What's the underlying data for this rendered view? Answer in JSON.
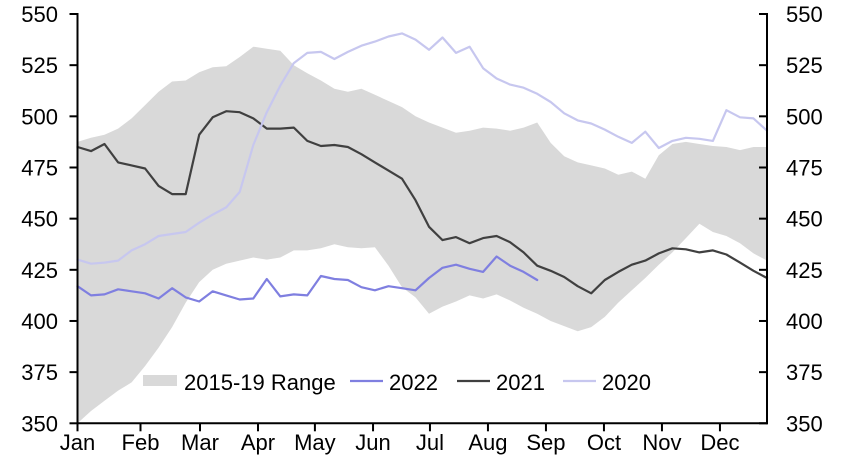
{
  "chart_data": {
    "type": "line",
    "x_axis": {
      "categories": [
        "Jan",
        "Feb",
        "Mar",
        "Apr",
        "May",
        "Jun",
        "Jul",
        "Aug",
        "Sep",
        "Oct",
        "Nov",
        "Dec"
      ],
      "tick_weeks": [
        0,
        4.66,
        9.06,
        13.35,
        17.56,
        21.86,
        26.07,
        30.36,
        34.65,
        38.94,
        43.23,
        47.52
      ],
      "weeks_span": 51
    },
    "y_axis": {
      "min": 350,
      "max": 550,
      "step": 25,
      "ticks": [
        550,
        525,
        500,
        475,
        450,
        425,
        400,
        375,
        350
      ],
      "dual_axis": true,
      "grid": false
    },
    "band": {
      "name": "2015-19 Range",
      "color": "#d9d9d9",
      "upper": [
        487.5,
        489.5,
        491,
        494,
        499,
        505.5,
        512,
        517,
        517.5,
        521.5,
        524,
        524.5,
        529,
        534,
        533,
        532,
        525,
        521,
        517.5,
        513.5,
        512,
        513.5,
        510.5,
        507.5,
        504.5,
        500,
        497,
        494.5,
        492,
        493,
        494.5,
        494,
        493,
        494.5,
        497,
        487,
        480.5,
        477.5,
        476,
        474.5,
        471.5,
        473,
        469.5,
        481,
        486.5,
        487.5,
        486.5,
        485.5,
        485,
        483.5,
        485,
        485
      ],
      "lower": [
        350,
        356,
        361,
        366,
        370,
        378,
        387,
        397,
        409,
        419,
        425,
        428,
        429.5,
        431,
        430,
        431,
        434.5,
        434.5,
        435.5,
        437.5,
        436,
        435.5,
        436,
        427,
        416.5,
        411.5,
        403.5,
        407,
        409.5,
        412.5,
        411,
        413,
        410,
        406.5,
        403.5,
        400,
        397.5,
        395,
        397,
        402,
        409,
        415,
        421,
        427.5,
        433.5,
        440.5,
        447.5,
        443.5,
        441.5,
        438,
        433,
        429.5
      ]
    },
    "series": [
      {
        "name": "2022",
        "color": "#7f7fe0",
        "values": [
          417,
          412.5,
          413,
          415.5,
          414.5,
          413.5,
          411,
          416,
          411.5,
          409.5,
          414.5,
          412.5,
          410.5,
          411,
          420.5,
          412,
          413,
          412.5,
          422,
          420.5,
          420,
          416.5,
          415,
          417,
          416,
          415,
          421,
          426,
          427.5,
          425.5,
          424,
          431.5,
          427,
          424,
          420
        ]
      },
      {
        "name": "2021",
        "color": "#404040",
        "values": [
          485,
          483,
          486.5,
          477.5,
          476,
          474.5,
          466,
          462,
          462,
          491,
          499.5,
          502.5,
          502,
          499,
          494,
          494,
          494.5,
          488,
          485.5,
          486,
          485,
          481.5,
          477.5,
          473.5,
          469.5,
          459,
          446,
          439.5,
          441,
          438,
          440.5,
          441.5,
          438.5,
          433.5,
          427,
          424.5,
          421.5,
          417,
          413.5,
          420,
          424,
          427.5,
          429.5,
          433,
          435.5,
          435,
          433.5,
          434.5,
          432.5,
          428.5,
          424.5,
          421
        ]
      },
      {
        "name": "2020",
        "color": "#c7c7ef",
        "values": [
          430,
          428,
          428.5,
          429.5,
          434.5,
          437.5,
          441.5,
          442.5,
          443.5,
          448,
          452,
          455.5,
          463,
          486,
          502,
          515,
          526,
          531,
          531.5,
          528,
          531.5,
          534.5,
          536.5,
          539,
          540.5,
          537.5,
          532.5,
          538.5,
          531,
          534,
          523.5,
          518.5,
          515.5,
          514,
          511,
          507,
          501.5,
          498,
          496.5,
          493.5,
          490,
          487,
          492.5,
          484.5,
          488,
          489.5,
          489,
          488,
          503,
          499.5,
          499,
          493
        ]
      }
    ],
    "legend": {
      "position": "bottom-inside",
      "items": [
        "2015-19 Range",
        "2022",
        "2021",
        "2020"
      ]
    }
  },
  "colors": {
    "background": "#ffffff",
    "axis": "#000000",
    "text": "#000000"
  }
}
